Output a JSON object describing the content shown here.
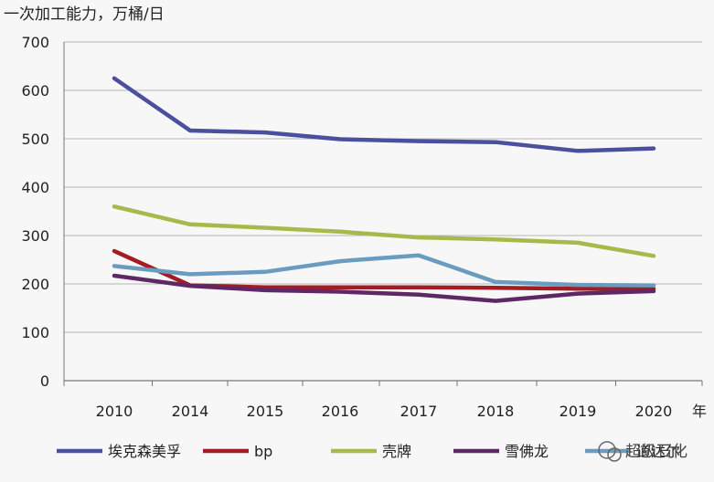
{
  "chart_data": {
    "type": "line",
    "title": "",
    "ylabel": "一次加工能力，万桶/日",
    "xunit": "年",
    "categories": [
      "2010",
      "2014",
      "2015",
      "2016",
      "2017",
      "2018",
      "2019",
      "2020"
    ],
    "ylim": [
      0,
      700
    ],
    "yticks": [
      0,
      100,
      200,
      300,
      400,
      500,
      600,
      700
    ],
    "grid": "horizontal",
    "legend_position": "bottom",
    "series": [
      {
        "name": "埃克森美孚",
        "color": "#4a4f9e",
        "values": [
          625,
          517,
          513,
          499,
          495,
          493,
          475,
          480
        ]
      },
      {
        "name": "bp",
        "color": "#a31c24",
        "values": [
          268,
          197,
          193,
          193,
          193,
          192,
          190,
          190
        ]
      },
      {
        "name": "壳牌",
        "color": "#a8b84a",
        "values": [
          360,
          323,
          316,
          308,
          296,
          292,
          285,
          258
        ]
      },
      {
        "name": "雪佛龙",
        "color": "#5e2866",
        "values": [
          217,
          196,
          187,
          184,
          178,
          165,
          180,
          185
        ]
      },
      {
        "name": "道达尔",
        "color": "#6a9cc0",
        "values": [
          237,
          220,
          225,
          247,
          259,
          204,
          198,
          197
        ]
      }
    ]
  },
  "watermark": "超级石化"
}
